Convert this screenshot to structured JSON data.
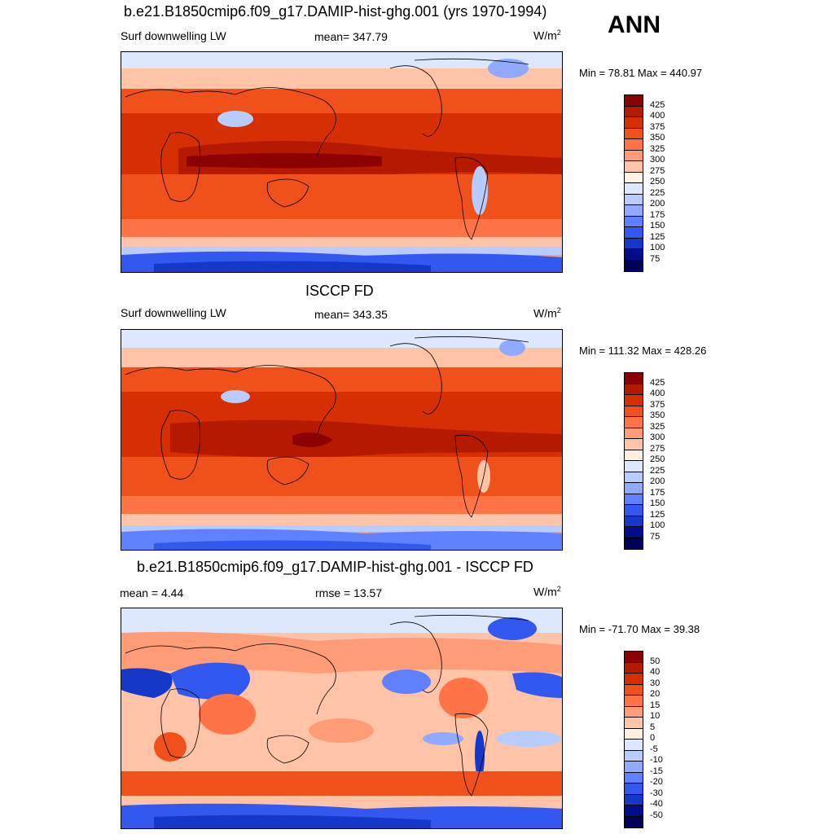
{
  "season": "ANN",
  "panels": [
    {
      "title": "b.e21.B1850cmip6.f09_g17.DAMIP-hist-ghg.001 (yrs 1970-1994)",
      "left_label": "Surf downwelling LW",
      "center_label": "mean= 347.79",
      "units": "W/m",
      "units_sup": "2",
      "minmax": "Min =  78.81 Max = 440.97",
      "colorbar_levels": [
        "425",
        "400",
        "375",
        "350",
        "325",
        "300",
        "275",
        "250",
        "225",
        "200",
        "175",
        "150",
        "125",
        "100",
        "75"
      ],
      "kind": "abs"
    },
    {
      "title": "ISCCP FD",
      "left_label": "Surf downwelling LW",
      "center_label": "mean= 343.35",
      "units": "W/m",
      "units_sup": "2",
      "minmax": "Min = 111.32 Max = 428.26",
      "colorbar_levels": [
        "425",
        "400",
        "375",
        "350",
        "325",
        "300",
        "275",
        "250",
        "225",
        "200",
        "175",
        "150",
        "125",
        "100",
        "75"
      ],
      "kind": "abs"
    },
    {
      "title": "b.e21.B1850cmip6.f09_g17.DAMIP-hist-ghg.001 - ISCCP FD",
      "left_label": "mean =   4.44",
      "center_label": "rmse =  13.57",
      "units": "W/m",
      "units_sup": "2",
      "minmax": "Min = -71.70 Max =  39.38",
      "colorbar_levels": [
        "50",
        "40",
        "30",
        "20",
        "15",
        "10",
        "5",
        "0",
        "-5",
        "-10",
        "-15",
        "-20",
        "-30",
        "-40",
        "-50"
      ],
      "kind": "diff"
    }
  ],
  "colors": {
    "abs_scale": [
      "#8b0000",
      "#b51a00",
      "#d62f04",
      "#f0501a",
      "#ff7446",
      "#ff9c78",
      "#ffc4a8",
      "#fff0e0",
      "#dde8ff",
      "#b8ccff",
      "#8faaff",
      "#5f80ff",
      "#3358f0",
      "#1638c8",
      "#000c8a",
      "#00005a"
    ],
    "diff_scale": [
      "#8b0000",
      "#b51a00",
      "#d62f04",
      "#f0501a",
      "#ff7446",
      "#ff9c78",
      "#ffc4a8",
      "#fff0e0",
      "#dde8ff",
      "#b8ccff",
      "#8faaff",
      "#5f80ff",
      "#3358f0",
      "#1638c8",
      "#000c8a",
      "#00005a"
    ]
  }
}
